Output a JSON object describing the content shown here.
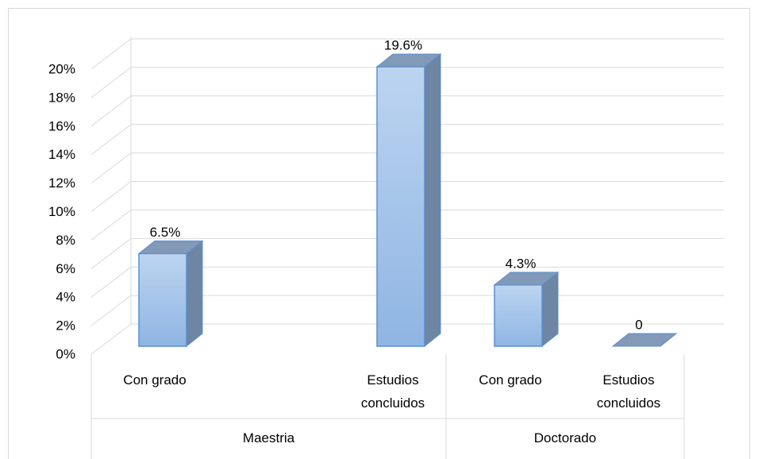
{
  "chart_data": {
    "type": "bar3d",
    "categories": [
      "Con grado",
      "Estudios concluidos",
      "Con grado",
      "Estudios concluidos"
    ],
    "groups": [
      "Maestria",
      "Doctorado"
    ],
    "values": [
      6.5,
      19.6,
      4.3,
      0
    ],
    "value_labels": [
      "6.5%",
      "19.6%",
      "4.3%",
      "0"
    ],
    "color": "#8fb5e3",
    "ylim": [
      0,
      20
    ],
    "yticks": [
      {
        "value": 0,
        "label": "0%"
      },
      {
        "value": 2,
        "label": "2%"
      },
      {
        "value": 4,
        "label": "4%"
      },
      {
        "value": 6,
        "label": "6%"
      },
      {
        "value": 8,
        "label": "8%"
      },
      {
        "value": 10,
        "label": "10%"
      },
      {
        "value": 12,
        "label": "12%"
      },
      {
        "value": 14,
        "label": "14%"
      },
      {
        "value": 16,
        "label": "16%"
      },
      {
        "value": 18,
        "label": "18%"
      },
      {
        "value": 20,
        "label": "20%"
      }
    ],
    "grid": true
  }
}
